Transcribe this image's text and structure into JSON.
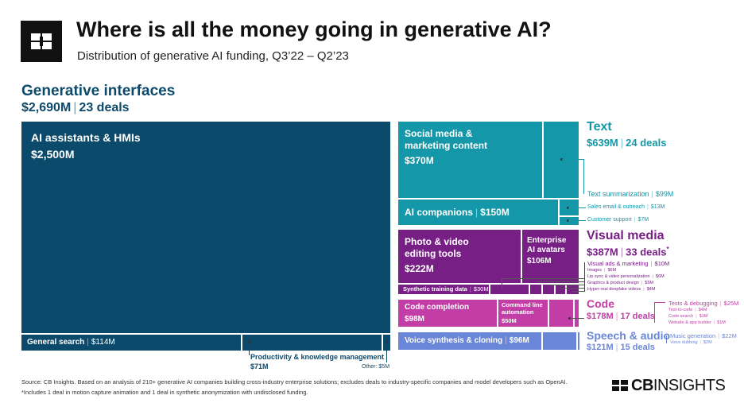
{
  "header": {
    "title": "Where is all the money going in generative AI?",
    "subtitle": "Distribution of generative AI funding, Q3’22 – Q2’23"
  },
  "colors": {
    "interfaces": "#0c4a6b",
    "text": "#1497a8",
    "visual": "#781f86",
    "code": "#c23da6",
    "speech": "#6a86d9"
  },
  "chart_data": {
    "type": "treemap",
    "title": "Where is all the money going in generative AI?",
    "subtitle": "Distribution of generative AI funding, Q3’22 – Q2’23",
    "categories": [
      {
        "name": "Generative interfaces",
        "funding": "$2,690M",
        "deals": "23 deals",
        "items": [
          {
            "name": "AI assistants & HMIs",
            "value": "$2,500M"
          },
          {
            "name": "General search",
            "value": "$114M"
          },
          {
            "name": "Productivity & knowledge management",
            "value": "$71M"
          },
          {
            "name": "Other",
            "value": "$5M"
          }
        ]
      },
      {
        "name": "Text",
        "funding": "$639M",
        "deals": "24 deals",
        "items": [
          {
            "name": "Social media & marketing content",
            "value": "$370M"
          },
          {
            "name": "AI companions",
            "value": "$150M"
          },
          {
            "name": "Text summarization",
            "value": "$99M"
          },
          {
            "name": "Sales email & outreach",
            "value": "$13M"
          },
          {
            "name": "Customer support",
            "value": "$7M"
          }
        ]
      },
      {
        "name": "Visual media",
        "funding": "$387M",
        "deals": "33 deals",
        "deals_mark": "*",
        "items": [
          {
            "name": "Photo & video editing tools",
            "value": "$222M"
          },
          {
            "name": "Enterprise AI avatars",
            "value": "$106M"
          },
          {
            "name": "Synthetic training data",
            "value": "$30M"
          },
          {
            "name": "Visual ads & marketing",
            "value": "$10M"
          },
          {
            "name": "Images",
            "value": "$6M"
          },
          {
            "name": "Lip sync & video personalization",
            "value": "$6M"
          },
          {
            "name": "Graphics & product design",
            "value": "$5M"
          },
          {
            "name": "Hyper-real deepfake videos",
            "value": "$4M"
          }
        ]
      },
      {
        "name": "Code",
        "funding": "$178M",
        "deals": "17 deals",
        "items": [
          {
            "name": "Code completion",
            "value": "$98M"
          },
          {
            "name": "Command line automation",
            "value": "$50M"
          },
          {
            "name": "Tests & debugging",
            "value": "$25M"
          },
          {
            "name": "Text-to-code",
            "value": "$4M"
          },
          {
            "name": "Code search",
            "value": "$1M"
          },
          {
            "name": "Website & app builder",
            "value": "$1M"
          }
        ]
      },
      {
        "name": "Speech & audio",
        "funding": "$121M",
        "deals": "15 deals",
        "items": [
          {
            "name": "Voice synthesis & cloning",
            "value": "$96M"
          },
          {
            "name": "Music generation",
            "value": "$22M"
          },
          {
            "name": "Voice dubbing",
            "value": "$2M"
          }
        ]
      }
    ]
  },
  "footer": {
    "source": "Source: CB Insights. Based on an analysis of 210+ generative AI companies building cross-industry enterprise solutions; excludes deals to industry-specific companies and model developers such as OpenAI.",
    "footnote": "*Includes 1 deal in motion capture animation and 1 deal in synthetic anonymization with undisclosed funding.",
    "brand_bold": "CB",
    "brand_rest": "INSIGHTS"
  }
}
